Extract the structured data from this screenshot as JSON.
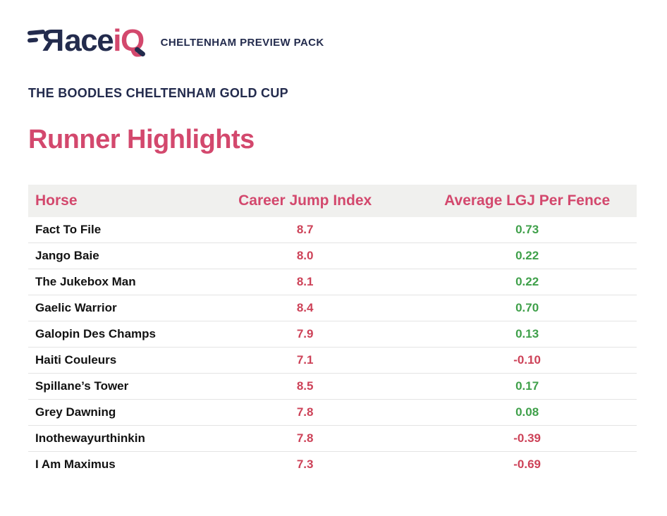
{
  "brand": {
    "logo_r": "R",
    "logo_mid": "ace",
    "logo_i": "i",
    "logo_q": "Q",
    "pack_label": "CHELTENHAM PREVIEW PACK"
  },
  "page": {
    "event_title": "THE BOODLES CHELTENHAM GOLD CUP",
    "section_title": "Runner Highlights"
  },
  "table": {
    "columns": [
      "Horse",
      "Career Jump Index",
      "Average LGJ Per Fence"
    ],
    "rows": [
      {
        "horse": "Fact To File",
        "career_jump_index": "8.7",
        "avg_lgj_per_fence": "0.73"
      },
      {
        "horse": "Jango Baie",
        "career_jump_index": "8.0",
        "avg_lgj_per_fence": "0.22"
      },
      {
        "horse": "The Jukebox Man",
        "career_jump_index": "8.1",
        "avg_lgj_per_fence": "0.22"
      },
      {
        "horse": "Gaelic Warrior",
        "career_jump_index": "8.4",
        "avg_lgj_per_fence": "0.70"
      },
      {
        "horse": "Galopin Des Champs",
        "career_jump_index": "7.9",
        "avg_lgj_per_fence": "0.13"
      },
      {
        "horse": "Haiti Couleurs",
        "career_jump_index": "7.1",
        "avg_lgj_per_fence": "-0.10"
      },
      {
        "horse": "Spillane’s Tower",
        "career_jump_index": "8.5",
        "avg_lgj_per_fence": "0.17"
      },
      {
        "horse": "Grey Dawning",
        "career_jump_index": "7.8",
        "avg_lgj_per_fence": "0.08"
      },
      {
        "horse": "Inothewayurthinkin",
        "career_jump_index": "7.8",
        "avg_lgj_per_fence": "-0.39"
      },
      {
        "horse": "I Am Maximus",
        "career_jump_index": "7.3",
        "avg_lgj_per_fence": "-0.69"
      }
    ]
  },
  "chart_data": {
    "type": "table",
    "title": "Runner Highlights",
    "categories": [
      "Fact To File",
      "Jango Baie",
      "The Jukebox Man",
      "Gaelic Warrior",
      "Galopin Des Champs",
      "Haiti Couleurs",
      "Spillane’s Tower",
      "Grey Dawning",
      "Inothewayurthinkin",
      "I Am Maximus"
    ],
    "series": [
      {
        "name": "Career Jump Index",
        "values": [
          8.7,
          8.0,
          8.1,
          8.4,
          7.9,
          7.1,
          8.5,
          7.8,
          7.8,
          7.3
        ]
      },
      {
        "name": "Average LGJ Per Fence",
        "values": [
          0.73,
          0.22,
          0.22,
          0.7,
          0.13,
          -0.1,
          0.17,
          0.08,
          -0.39,
          -0.69
        ]
      }
    ]
  },
  "colors": {
    "navy": "#232b4d",
    "accent_pink": "#d3486d",
    "index_red": "#cd4258",
    "positive_green": "#3fa04a",
    "negative_red": "#cd4258",
    "header_row_bg": "#f0f0ee"
  }
}
